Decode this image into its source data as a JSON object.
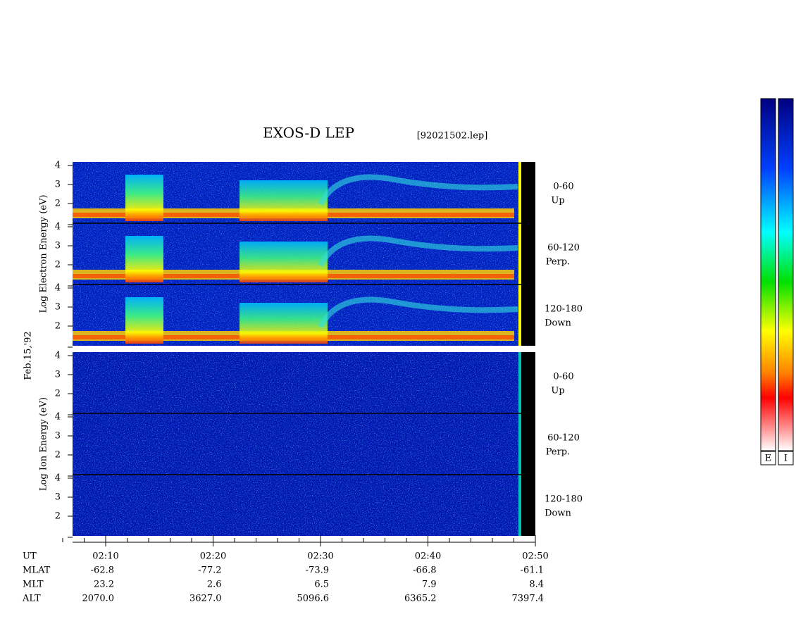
{
  "header": {
    "title": "EXOS-D LEP",
    "file": "[92021502.lep]"
  },
  "date_label": "Feb.15,'92",
  "electron": {
    "axis_label": "Log  Electron  Energy (eV)",
    "yticks": [
      2,
      3,
      4
    ],
    "panels": [
      {
        "angle": "0-60",
        "direction": "Up"
      },
      {
        "angle": "60-120",
        "direction": "Perp."
      },
      {
        "angle": "120-180",
        "direction": "Down"
      }
    ]
  },
  "ion": {
    "axis_label": "Log  Ion  Energy (eV)",
    "yticks": [
      2,
      3,
      4
    ],
    "panels": [
      {
        "angle": "0-60",
        "direction": "Up"
      },
      {
        "angle": "60-120",
        "direction": "Perp."
      },
      {
        "angle": "120-180",
        "direction": "Down"
      }
    ]
  },
  "orbit": {
    "row_labels": [
      "UT",
      "MLAT",
      "MLT",
      "ALT"
    ],
    "ut": [
      "02:10",
      "02:20",
      "02:30",
      "02:40",
      "02:50"
    ],
    "rows": [
      [
        "-62.8",
        "-77.2",
        "-73.9",
        "-66.8",
        "-61.1"
      ],
      [
        "23.2",
        "2.6",
        "6.5",
        "7.9",
        "8.4"
      ],
      [
        "2070.0",
        "3627.0",
        "5096.6",
        "6365.2",
        "7397.4"
      ]
    ]
  },
  "colorbar_labels": [
    "E",
    "I"
  ]
}
